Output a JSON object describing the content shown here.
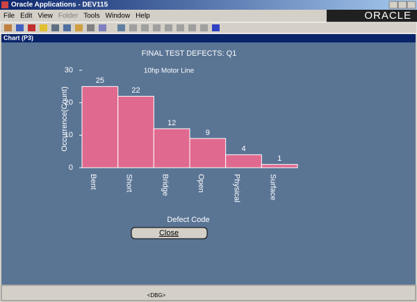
{
  "window": {
    "title": "Oracle Applications - DEV115",
    "logo": "ORACLE"
  },
  "menu": [
    "File",
    "Edit",
    "View",
    "Folder",
    "Tools",
    "Window",
    "Help"
  ],
  "chart_window": {
    "title": "Chart (P3)"
  },
  "chart_data": {
    "type": "bar",
    "title": "FINAL TEST DEFECTS: Q1",
    "subtitle": "10hp Motor Line",
    "x_label": "Defect Code",
    "y_label": "Occurrence(Count)",
    "categories": [
      "Bent",
      "Short",
      "Bridge",
      "Open",
      "Physical",
      "Surface"
    ],
    "values": [
      25,
      22,
      12,
      9,
      4,
      1
    ],
    "color": "#e0698f",
    "ylim": [
      0,
      30
    ],
    "yticks": [
      0,
      10,
      20,
      30
    ]
  },
  "button": {
    "label": "Close"
  },
  "status": {
    "text": "<DBG>"
  }
}
